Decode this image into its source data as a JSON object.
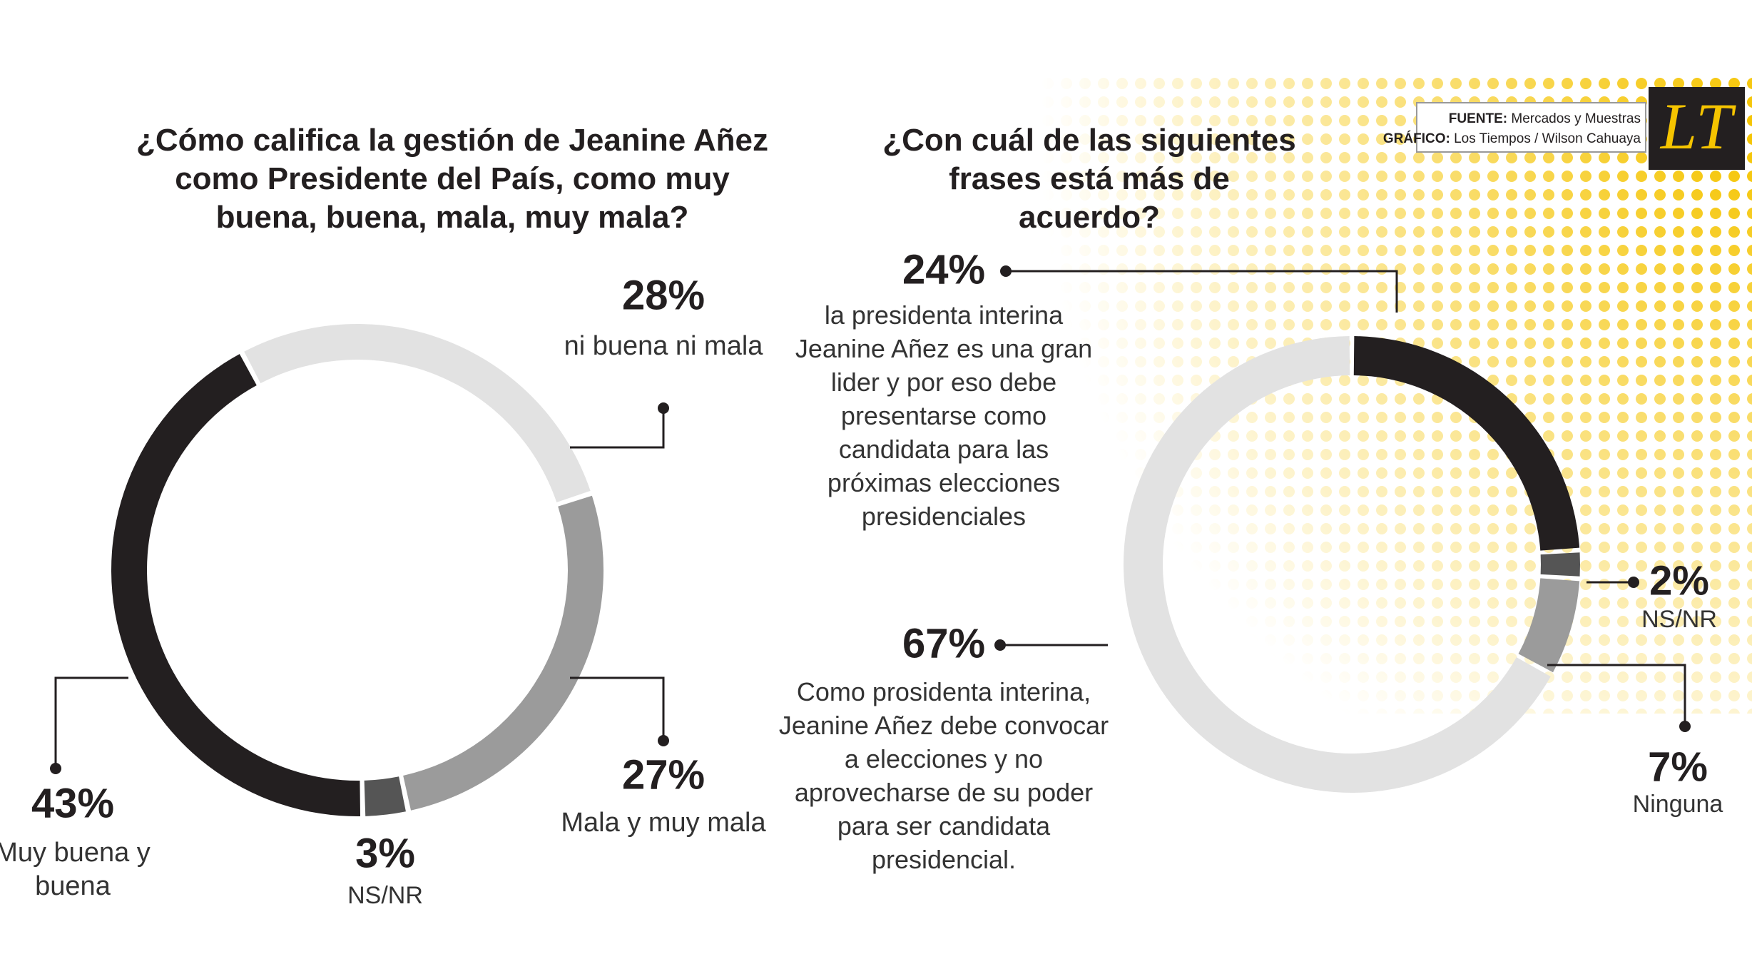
{
  "source": {
    "label": "FUENTE:",
    "text": "Mercados y Muestras"
  },
  "credit": {
    "label": "GRÁFICO:",
    "text": "Los Tiempos / Wilson Cahuaya"
  },
  "logo": "LT",
  "chart_data": [
    {
      "type": "pie",
      "donut": true,
      "title": "¿Cómo califica la gestión de Jeanine Añez como Presidente del País, como muy buena, buena, mala, muy mala?",
      "categories": [
        "ni buena ni mala",
        "Mala y muy mala",
        "NS/NR",
        "Muy buena y buena"
      ],
      "values": [
        28,
        27,
        3,
        43
      ],
      "value_labels": [
        "28%",
        "27%",
        "3%",
        "43%"
      ],
      "colors": [
        "#e2e2e2",
        "#9b9b9b",
        "#555555",
        "#231f20"
      ]
    },
    {
      "type": "pie",
      "donut": true,
      "title": "¿Con cuál de las siguientes frases está más de acuerdo?",
      "categories": [
        "la presidenta interina Jeanine Añez es una gran lider y por eso debe presentarse como candidata para las próximas elecciones presidenciales",
        "NS/NR",
        "Ninguna",
        "Como prosidenta interina, Jeanine Añez debe convocar a elecciones y no aprovecharse de su poder para ser candidata presidencial."
      ],
      "values": [
        24,
        2,
        7,
        67
      ],
      "value_labels": [
        "24%",
        "2%",
        "7%",
        "67%"
      ],
      "colors": [
        "#231f20",
        "#555555",
        "#9b9b9b",
        "#e2e2e2"
      ]
    }
  ]
}
